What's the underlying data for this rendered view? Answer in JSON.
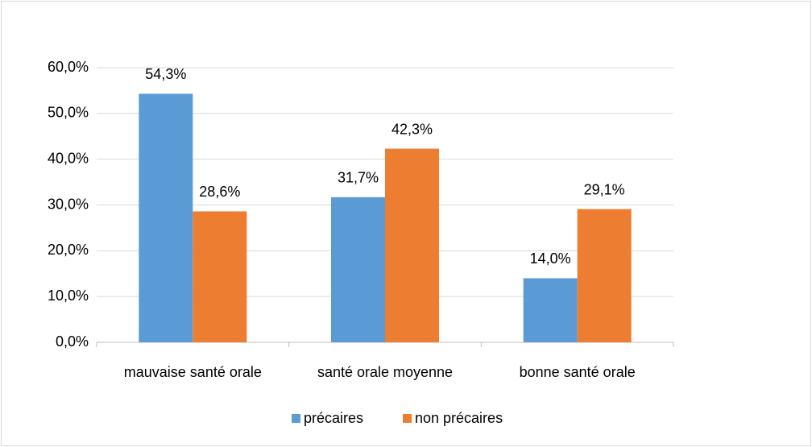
{
  "chart_data": {
    "type": "bar",
    "categories": [
      "mauvaise santé orale",
      "santé orale moyenne",
      "bonne santé orale"
    ],
    "series": [
      {
        "name": "précaires",
        "color": "#5b9bd5",
        "values": [
          54.3,
          31.7,
          14.0
        ],
        "value_labels": [
          "54,3%",
          "31,7%",
          "14,0%"
        ]
      },
      {
        "name": "non précaires",
        "color": "#ed7d31",
        "values": [
          28.6,
          42.3,
          29.1
        ],
        "value_labels": [
          "28,6%",
          "42,3%",
          "29,1%"
        ]
      }
    ],
    "ylim": [
      0,
      60
    ],
    "yticks": [
      {
        "value": 0,
        "label": "0,0%"
      },
      {
        "value": 10,
        "label": "10,0%"
      },
      {
        "value": 20,
        "label": "20,0%"
      },
      {
        "value": 30,
        "label": "30,0%"
      },
      {
        "value": 40,
        "label": "40,0%"
      },
      {
        "value": 50,
        "label": "50,0%"
      },
      {
        "value": 60,
        "label": "60,0%"
      }
    ],
    "grid": true,
    "legend": "bottom"
  }
}
